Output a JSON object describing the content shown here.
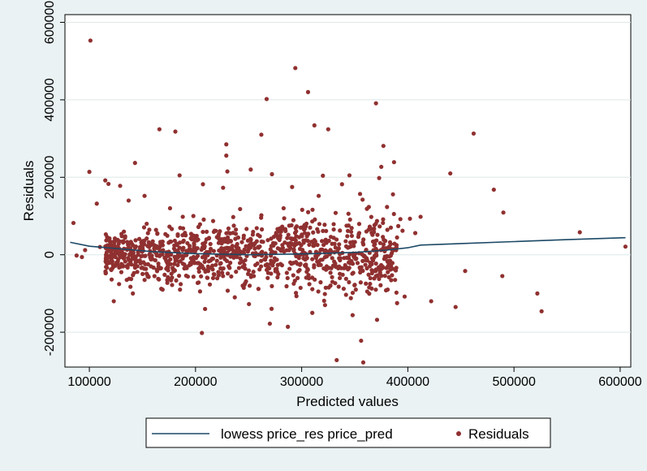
{
  "chart_data": {
    "type": "scatter",
    "xlabel": "Predicted values",
    "ylabel": "Residuals",
    "xlim": [
      77000,
      610000
    ],
    "ylim": [
      -290000,
      620000
    ],
    "x_ticks": [
      100000,
      200000,
      300000,
      400000,
      500000,
      600000
    ],
    "y_ticks": [
      -200000,
      0,
      200000,
      400000,
      600000
    ],
    "x_tick_labels": [
      "100000",
      "200000",
      "300000",
      "400000",
      "500000",
      "600000"
    ],
    "y_tick_labels": [
      "-200000",
      "0",
      "200000",
      "400000",
      "600000"
    ],
    "grid": "horizontal",
    "legend": {
      "placement": "bottom",
      "entries": [
        "lowess price_res price_pred",
        "Residuals"
      ]
    },
    "colors": {
      "background": "#eaf2f3",
      "plot_area": "#ffffff",
      "residuals": "#903030",
      "lowess": "#1c4966"
    },
    "series": [
      {
        "name": "lowess price_res price_pred",
        "kind": "line",
        "x": [
          82000,
          100000,
          130000,
          160000,
          200000,
          250000,
          300000,
          350000,
          380000,
          400000,
          412000,
          450000,
          500000,
          550000,
          605000
        ],
        "y": [
          32000,
          22000,
          15000,
          8000,
          3000,
          0,
          2000,
          6000,
          12000,
          18000,
          25000,
          29000,
          34000,
          39000,
          44000
        ]
      },
      {
        "name": "Residuals",
        "kind": "scatter",
        "x": [
          101000,
          294000,
          306000,
          370000,
          267000,
          312000,
          325000,
          377000,
          166000,
          181000,
          262000,
          229000,
          462000,
          229000,
          387000,
          375000,
          143000,
          230000,
          252000,
          100000,
          185000,
          272000,
          320000,
          345000,
          373000,
          440000,
          115000,
          118000,
          129000,
          207000,
          226000,
          338000,
          481000,
          107000,
          137000,
          152000,
          291000,
          316000,
          355000,
          386000,
          490000,
          412000,
          402000,
          393000,
          85000,
          562000,
          605000,
          360000,
          364000,
          379000,
          388000,
          454000,
          489000,
          522000,
          526000,
          422000,
          445000,
          371000,
          348000,
          287000,
          206000,
          270000,
          356000,
          333000,
          358000,
          310000,
          322000,
          397000,
          381000,
          96000,
          93000,
          88000,
          110000,
          395000,
          384000,
          391000,
          407000,
          361000,
          343000,
          299000,
          283000,
          332000,
          310000,
          188000,
          154000,
          176000,
          242000,
          198000,
          123000,
          141000,
          169000,
          209000,
          237000,
          251000,
          268000,
          278000,
          304000,
          329000,
          351000,
          366000
        ],
        "y": [
          553000,
          482000,
          420000,
          391000,
          402000,
          334000,
          324000,
          281000,
          324000,
          318000,
          310000,
          285000,
          313000,
          256000,
          239000,
          227000,
          237000,
          215000,
          220000,
          214000,
          205000,
          208000,
          204000,
          205000,
          198000,
          210000,
          192000,
          183000,
          178000,
          182000,
          173000,
          182000,
          168000,
          132000,
          140000,
          152000,
          175000,
          152000,
          157000,
          156000,
          109000,
          98000,
          93000,
          92000,
          82000,
          58000,
          21000,
          -26000,
          5000,
          -5000,
          -65000,
          -42000,
          -55000,
          -100000,
          -146000,
          -120000,
          -135000,
          -168000,
          -156000,
          -186000,
          -202000,
          -178000,
          -222000,
          -272000,
          -278000,
          -150000,
          -130000,
          -108000,
          -90000,
          12000,
          -6000,
          -2000,
          20000,
          62000,
          70000,
          74000,
          56000,
          60000,
          48000,
          70000,
          120000,
          108000,
          86000,
          98000,
          80000,
          120000,
          118000,
          100000,
          -120000,
          -100000,
          -90000,
          -140000,
          -110000,
          -80000,
          -60000,
          -50000,
          -30000,
          -70000,
          -90000,
          -40000
        ]
      }
    ]
  }
}
